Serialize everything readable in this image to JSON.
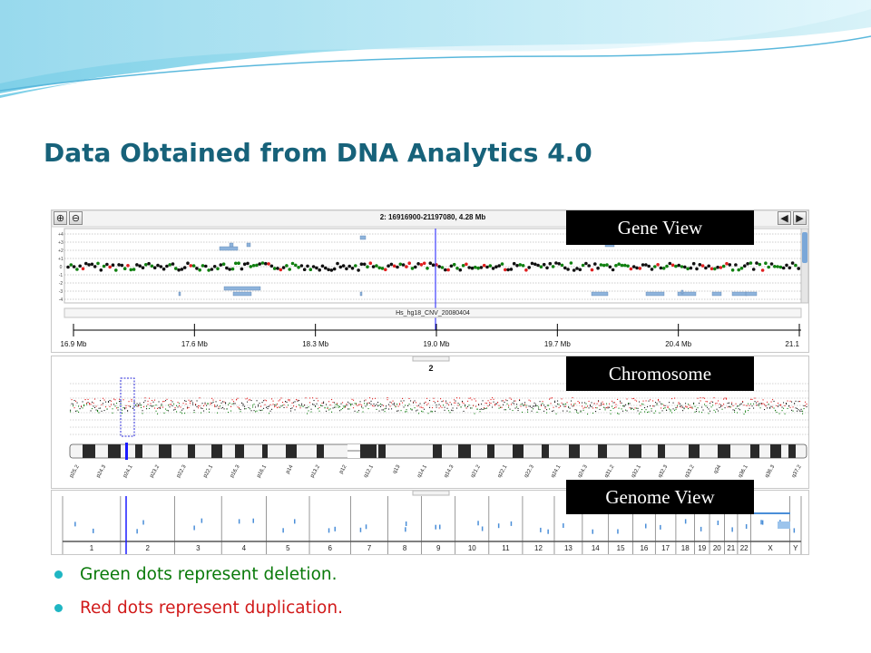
{
  "slide": {
    "title": "Data Obtained from DNA Analytics 4.0"
  },
  "gene_view": {
    "label": "Gene View",
    "region_title": "2: 16916900-21197080, 4.28 Mb",
    "track_name": "Hs_hg18_CNV_20080404",
    "ruler_ticks": [
      "16.9 Mb",
      "17.6 Mb",
      "18.3 Mb",
      "19.0 Mb",
      "19.7 Mb",
      "20.4 Mb",
      "21.1"
    ],
    "y_ticks": [
      "+4",
      "+3",
      "+2",
      "+1",
      "0",
      "-1",
      "-2",
      "-3",
      "-4"
    ]
  },
  "chromosome_view": {
    "label": "Chromosome",
    "chromosome_number": "2",
    "bands": [
      "p25.2",
      "p24.3",
      "p24.1",
      "p23.2",
      "p22.3",
      "p22.1",
      "p16.3",
      "p16.1",
      "p14",
      "p13.2",
      "p12",
      "q12.1",
      "q13",
      "q14.1",
      "q14.3",
      "q21.2",
      "q22.1",
      "q22.3",
      "q24.1",
      "q24.3",
      "q31.2",
      "q32.1",
      "q32.3",
      "q33.2",
      "q34",
      "q36.1",
      "q36.3",
      "q37.2"
    ]
  },
  "genome_view": {
    "label": "Genome View",
    "chromosomes": [
      "1",
      "2",
      "3",
      "4",
      "5",
      "6",
      "7",
      "8",
      "9",
      "10",
      "11",
      "12",
      "13",
      "14",
      "15",
      "16",
      "17",
      "18",
      "19",
      "20",
      "21",
      "22",
      "X",
      "Y"
    ]
  },
  "legend": {
    "items": [
      {
        "text": "Green dots represent deletion.",
        "color": "#0a7a0a"
      },
      {
        "text": "Red dots represent duplication.",
        "color": "#d11a1a"
      }
    ]
  },
  "colors": {
    "title": "#17627a",
    "deletion": "#108010",
    "duplication": "#e02020",
    "bullet": "#1fb6c3",
    "cursor": "#1a1aff",
    "gene_block": "#8fb4dc"
  }
}
